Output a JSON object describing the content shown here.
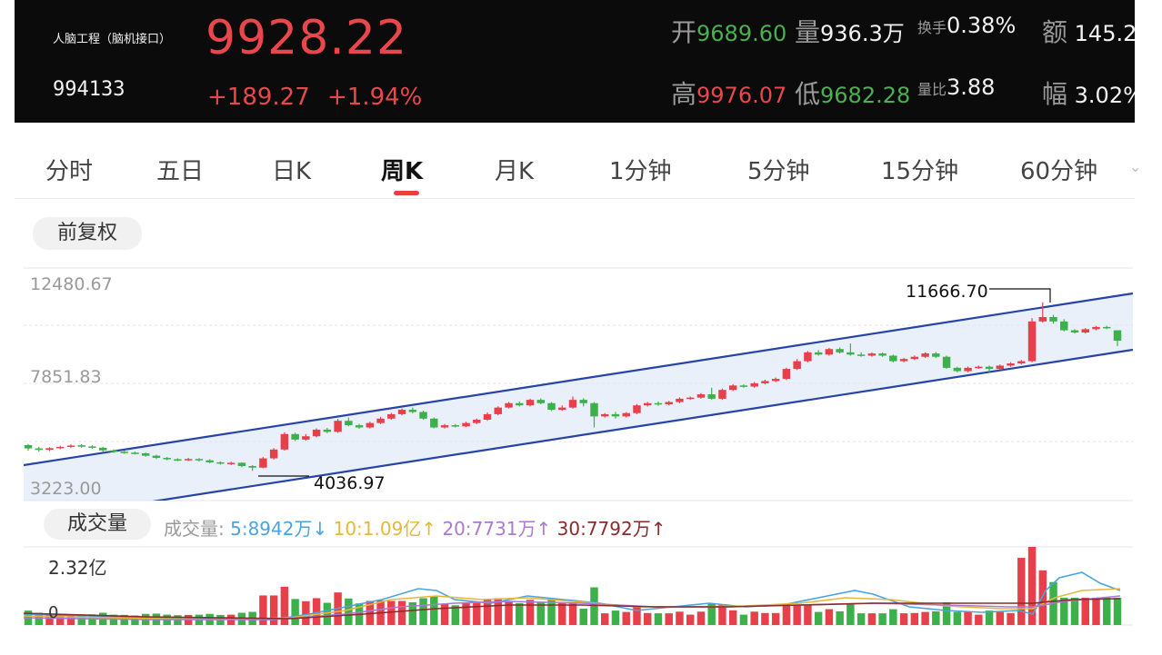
{
  "header": {
    "name": "人脑工程（脑机接口）",
    "code": "994133",
    "price": "9928.22",
    "change": "+189.27",
    "change_pct": "+1.94%",
    "stats": {
      "open_label": "开",
      "open": "9689.60",
      "volume_label": "量",
      "volume": "936.3万",
      "turnover_label": "换手",
      "turnover": "0.38%",
      "amount_label": "额",
      "amount": "145.2",
      "high_label": "高",
      "high": "9976.07",
      "low_label": "低",
      "low": "9682.28",
      "ratio_label": "量比",
      "ratio": "3.88",
      "amplitude_label": "幅",
      "amplitude": "3.02%"
    }
  },
  "tabs": [
    {
      "label": "分时"
    },
    {
      "label": "五日"
    },
    {
      "label": "日K"
    },
    {
      "label": "周K"
    },
    {
      "label": "月K"
    },
    {
      "label": "1分钟"
    },
    {
      "label": "5分钟"
    },
    {
      "label": "15分钟"
    },
    {
      "label": "60分钟"
    }
  ],
  "active_tab": "周K",
  "adjust_button": "前复权",
  "price_axis": {
    "top": "12480.67",
    "mid": "7851.83",
    "bottom": "3223.00"
  },
  "annotations": {
    "high": "11666.70",
    "low": "4036.97"
  },
  "volume": {
    "button": "成交量",
    "legend_label": "成交量:",
    "ma5": "5:8942万↓",
    "ma10": "10:1.09亿↑",
    "ma20": "20:7731万↑",
    "ma30": "30:7792万↑",
    "max_label": "2.32亿",
    "zero_label": "0"
  },
  "colors": {
    "up": "#e8404a",
    "down": "#3cb04a",
    "channel": "#2643a8",
    "ma5": "#4aa3df",
    "ma10": "#e6b73a",
    "ma20": "#a87ad6",
    "ma30": "#8b2a2a"
  },
  "chart_data": {
    "type": "candlestick",
    "ylim": [
      3223.0,
      12480.67
    ],
    "candles": [
      [
        5200,
        5050,
        5250,
        4950
      ],
      [
        5050,
        4980,
        5120,
        4900
      ],
      [
        4990,
        5060,
        5110,
        4930
      ],
      [
        5060,
        5120,
        5170,
        5010
      ],
      [
        5120,
        5180,
        5230,
        5070
      ],
      [
        5190,
        5140,
        5240,
        5080
      ],
      [
        5140,
        5080,
        5190,
        5030
      ],
      [
        5080,
        4960,
        5120,
        4900
      ],
      [
        4960,
        4900,
        5000,
        4850
      ],
      [
        4900,
        4860,
        4950,
        4810
      ],
      [
        4860,
        4830,
        4900,
        4780
      ],
      [
        4830,
        4720,
        4860,
        4680
      ],
      [
        4720,
        4620,
        4760,
        4570
      ],
      [
        4620,
        4560,
        4660,
        4510
      ],
      [
        4560,
        4510,
        4600,
        4470
      ],
      [
        4510,
        4570,
        4620,
        4480
      ],
      [
        4570,
        4510,
        4610,
        4460
      ],
      [
        4510,
        4420,
        4560,
        4380
      ],
      [
        4420,
        4360,
        4460,
        4320
      ],
      [
        4360,
        4400,
        4450,
        4300
      ],
      [
        4400,
        4250,
        4420,
        4200
      ],
      [
        4250,
        4180,
        4290,
        4037
      ],
      [
        4180,
        4600,
        4660,
        4150
      ],
      [
        4600,
        5000,
        5060,
        4550
      ],
      [
        5000,
        5700,
        5780,
        4950
      ],
      [
        5700,
        5450,
        5760,
        5380
      ],
      [
        5450,
        5600,
        5700,
        5400
      ],
      [
        5600,
        5900,
        5960,
        5550
      ],
      [
        5900,
        5800,
        5980,
        5740
      ],
      [
        5800,
        6300,
        6380,
        5760
      ],
      [
        6300,
        6100,
        6450,
        6050
      ],
      [
        6100,
        6000,
        6160,
        5940
      ],
      [
        6000,
        6200,
        6260,
        5950
      ],
      [
        6200,
        6400,
        6480,
        6150
      ],
      [
        6400,
        6600,
        6660,
        6350
      ],
      [
        6600,
        6800,
        6860,
        6550
      ],
      [
        6800,
        6700,
        6900,
        6640
      ],
      [
        6700,
        6400,
        6760,
        6350
      ],
      [
        6400,
        6000,
        6450,
        5960
      ],
      [
        6000,
        6100,
        6160,
        5950
      ],
      [
        6100,
        6050,
        6150,
        6000
      ],
      [
        6050,
        6200,
        6260,
        6010
      ],
      [
        6200,
        6350,
        6400,
        6150
      ],
      [
        6350,
        6600,
        6680,
        6300
      ],
      [
        6600,
        6900,
        6960,
        6550
      ],
      [
        6900,
        7100,
        7160,
        6860
      ],
      [
        7100,
        7000,
        7180,
        6950
      ],
      [
        7000,
        7250,
        7300,
        6950
      ],
      [
        7250,
        7100,
        7320,
        7050
      ],
      [
        7100,
        6800,
        7150,
        6750
      ],
      [
        6800,
        6900,
        7000,
        6750
      ],
      [
        6900,
        7250,
        7400,
        6850
      ],
      [
        7250,
        7100,
        7320,
        6950
      ],
      [
        7100,
        6500,
        7150,
        6000
      ],
      [
        6500,
        6600,
        6650,
        6450
      ],
      [
        6600,
        6500,
        6700,
        6400
      ],
      [
        6500,
        6650,
        6700,
        6450
      ],
      [
        6650,
        7000,
        7060,
        6600
      ],
      [
        7000,
        7100,
        7160,
        6950
      ],
      [
        7100,
        7050,
        7180,
        6980
      ],
      [
        7050,
        7150,
        7200,
        7000
      ],
      [
        7150,
        7300,
        7360,
        7100
      ],
      [
        7300,
        7350,
        7400,
        7250
      ],
      [
        7350,
        7500,
        7560,
        7300
      ],
      [
        7500,
        7300,
        7800,
        7250
      ],
      [
        7300,
        7700,
        7760,
        7250
      ],
      [
        7700,
        7900,
        7960,
        7650
      ],
      [
        7900,
        7850,
        7950,
        7800
      ],
      [
        7850,
        8000,
        8060,
        7800
      ],
      [
        8000,
        8100,
        8160,
        7950
      ],
      [
        8100,
        8200,
        8260,
        8050
      ],
      [
        8200,
        8650,
        8700,
        8150
      ],
      [
        8650,
        9000,
        9100,
        8600
      ],
      [
        9000,
        9400,
        9460,
        8950
      ],
      [
        9400,
        9300,
        9500,
        9250
      ],
      [
        9300,
        9550,
        9600,
        9250
      ],
      [
        9550,
        9400,
        9620,
        9350
      ],
      [
        9400,
        9300,
        9800,
        9250
      ],
      [
        9300,
        9250,
        9400,
        9200
      ],
      [
        9250,
        9350,
        9400,
        9200
      ],
      [
        9350,
        9250,
        9400,
        9200
      ],
      [
        9250,
        9000,
        9300,
        8950
      ],
      [
        9000,
        9100,
        9150,
        8950
      ],
      [
        9100,
        9200,
        9260,
        9050
      ],
      [
        9200,
        9350,
        9400,
        9150
      ],
      [
        9350,
        9200,
        9420,
        9150
      ],
      [
        9200,
        8700,
        9250,
        8650
      ],
      [
        8700,
        8550,
        8750,
        8500
      ],
      [
        8550,
        8700,
        8760,
        8500
      ],
      [
        8700,
        8750,
        8800,
        8650
      ],
      [
        8750,
        8650,
        8800,
        8500
      ],
      [
        8650,
        8800,
        8850,
        8600
      ],
      [
        8800,
        8900,
        8960,
        8750
      ],
      [
        8900,
        9000,
        9060,
        8850
      ],
      [
        9000,
        10800,
        10950,
        8950
      ],
      [
        10800,
        11000,
        11667,
        10750
      ],
      [
        11000,
        10800,
        11100,
        10700
      ],
      [
        10800,
        10400,
        10900,
        10350
      ],
      [
        10400,
        10300,
        10450,
        10250
      ],
      [
        10300,
        10450,
        10500,
        10250
      ],
      [
        10450,
        10550,
        10600,
        10400
      ],
      [
        10550,
        10500,
        10600,
        10450
      ],
      [
        10400,
        9928,
        10300,
        9682
      ]
    ]
  }
}
